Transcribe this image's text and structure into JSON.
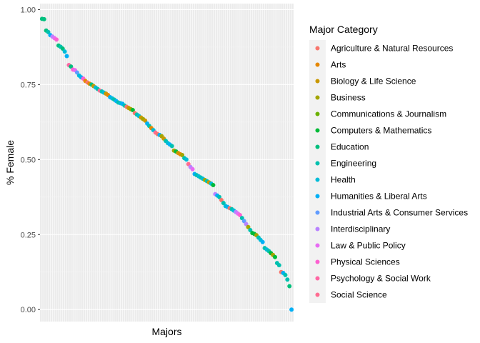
{
  "chart_data": {
    "type": "scatter",
    "xlabel": "Majors",
    "ylabel": "% Female",
    "ylim": [
      -0.04,
      1.02
    ],
    "yticks": [
      "0.00",
      "0.25",
      "0.50",
      "0.75",
      "1.00"
    ],
    "ytick_values": [
      0,
      0.25,
      0.5,
      0.75,
      1.0
    ],
    "grid": true,
    "x_tick_labels_shown": false,
    "legend_placement": "right",
    "legend": {
      "title": "Major Category",
      "categories": [
        {
          "name": "Agriculture & Natural Resources",
          "color": "#F8766D"
        },
        {
          "name": "Arts",
          "color": "#E58700"
        },
        {
          "name": "Biology & Life Science",
          "color": "#C99800"
        },
        {
          "name": "Business",
          "color": "#A3A500"
        },
        {
          "name": "Communications & Journalism",
          "color": "#6BB100"
        },
        {
          "name": "Computers & Mathematics",
          "color": "#00BA38"
        },
        {
          "name": "Education",
          "color": "#00BF7D"
        },
        {
          "name": "Engineering",
          "color": "#00C0AF"
        },
        {
          "name": "Health",
          "color": "#00BCD8"
        },
        {
          "name": "Humanities & Liberal Arts",
          "color": "#00B0F6"
        },
        {
          "name": "Industrial Arts & Consumer Services",
          "color": "#619CFF"
        },
        {
          "name": "Interdisciplinary",
          "color": "#B983FF"
        },
        {
          "name": "Law & Public Policy",
          "color": "#E76BF3"
        },
        {
          "name": "Physical Sciences",
          "color": "#FD61D1"
        },
        {
          "name": "Psychology & Social Work",
          "color": "#FF67A4"
        },
        {
          "name": "Social Science",
          "color": "#FF6C91"
        }
      ]
    },
    "points": [
      {
        "rank": 1,
        "y": 0.969,
        "category": "Education"
      },
      {
        "rank": 2,
        "y": 0.968,
        "category": "Education"
      },
      {
        "rank": 3,
        "y": 0.93,
        "category": "Education"
      },
      {
        "rank": 4,
        "y": 0.925,
        "category": "Engineering"
      },
      {
        "rank": 5,
        "y": 0.915,
        "category": "Humanities & Liberal Arts"
      },
      {
        "rank": 6,
        "y": 0.91,
        "category": "Interdisciplinary"
      },
      {
        "rank": 7,
        "y": 0.905,
        "category": "Law & Public Policy"
      },
      {
        "rank": 8,
        "y": 0.9,
        "category": "Physical Sciences"
      },
      {
        "rank": 9,
        "y": 0.88,
        "category": "Education"
      },
      {
        "rank": 10,
        "y": 0.876,
        "category": "Engineering"
      },
      {
        "rank": 11,
        "y": 0.87,
        "category": "Education"
      },
      {
        "rank": 12,
        "y": 0.86,
        "category": "Health"
      },
      {
        "rank": 13,
        "y": 0.845,
        "category": "Humanities & Liberal Arts"
      },
      {
        "rank": 14,
        "y": 0.815,
        "category": "Psychology & Social Work"
      },
      {
        "rank": 15,
        "y": 0.81,
        "category": "Education"
      },
      {
        "rank": 16,
        "y": 0.8,
        "category": "Physical Sciences"
      },
      {
        "rank": 17,
        "y": 0.798,
        "category": "Law & Public Policy"
      },
      {
        "rank": 18,
        "y": 0.79,
        "category": "Industrial Arts & Consumer Services"
      },
      {
        "rank": 19,
        "y": 0.78,
        "category": "Health"
      },
      {
        "rank": 20,
        "y": 0.774,
        "category": "Humanities & Liberal Arts"
      },
      {
        "rank": 21,
        "y": 0.77,
        "category": "Physical Sciences"
      },
      {
        "rank": 22,
        "y": 0.762,
        "category": "Arts"
      },
      {
        "rank": 23,
        "y": 0.757,
        "category": "Agriculture & Natural Resources"
      },
      {
        "rank": 24,
        "y": 0.753,
        "category": "Arts"
      },
      {
        "rank": 25,
        "y": 0.75,
        "category": "Education"
      },
      {
        "rank": 26,
        "y": 0.745,
        "category": "Biology & Life Science"
      },
      {
        "rank": 27,
        "y": 0.74,
        "category": "Health"
      },
      {
        "rank": 28,
        "y": 0.735,
        "category": "Engineering"
      },
      {
        "rank": 29,
        "y": 0.73,
        "category": "Social Science"
      },
      {
        "rank": 30,
        "y": 0.727,
        "category": "Engineering"
      },
      {
        "rank": 31,
        "y": 0.723,
        "category": "Health"
      },
      {
        "rank": 32,
        "y": 0.72,
        "category": "Biology & Life Science"
      },
      {
        "rank": 33,
        "y": 0.715,
        "category": "Arts"
      },
      {
        "rank": 34,
        "y": 0.708,
        "category": "Humanities & Liberal Arts"
      },
      {
        "rank": 35,
        "y": 0.704,
        "category": "Health"
      },
      {
        "rank": 36,
        "y": 0.7,
        "category": "Engineering"
      },
      {
        "rank": 37,
        "y": 0.695,
        "category": "Humanities & Liberal Arts"
      },
      {
        "rank": 38,
        "y": 0.69,
        "category": "Engineering"
      },
      {
        "rank": 39,
        "y": 0.688,
        "category": "Health"
      },
      {
        "rank": 40,
        "y": 0.686,
        "category": "Humanities & Liberal Arts"
      },
      {
        "rank": 41,
        "y": 0.68,
        "category": "Engineering"
      },
      {
        "rank": 42,
        "y": 0.676,
        "category": "Agriculture & Natural Resources"
      },
      {
        "rank": 43,
        "y": 0.672,
        "category": "Biology & Life Science"
      },
      {
        "rank": 44,
        "y": 0.668,
        "category": "Business"
      },
      {
        "rank": 45,
        "y": 0.665,
        "category": "Computers & Mathematics"
      },
      {
        "rank": 46,
        "y": 0.655,
        "category": "Agriculture & Natural Resources"
      },
      {
        "rank": 47,
        "y": 0.65,
        "category": "Engineering"
      },
      {
        "rank": 48,
        "y": 0.645,
        "category": "Health"
      },
      {
        "rank": 49,
        "y": 0.64,
        "category": "Biology & Life Science"
      },
      {
        "rank": 50,
        "y": 0.635,
        "category": "Business"
      },
      {
        "rank": 51,
        "y": 0.63,
        "category": "Biology & Life Science"
      },
      {
        "rank": 52,
        "y": 0.62,
        "category": "Humanities & Liberal Arts"
      },
      {
        "rank": 53,
        "y": 0.612,
        "category": "Engineering"
      },
      {
        "rank": 54,
        "y": 0.605,
        "category": "Arts"
      },
      {
        "rank": 55,
        "y": 0.598,
        "category": "Health"
      },
      {
        "rank": 56,
        "y": 0.59,
        "category": "Social Science"
      },
      {
        "rank": 57,
        "y": 0.585,
        "category": "Agriculture & Natural Resources"
      },
      {
        "rank": 58,
        "y": 0.582,
        "category": "Humanities & Liberal Arts"
      },
      {
        "rank": 59,
        "y": 0.578,
        "category": "Business"
      },
      {
        "rank": 60,
        "y": 0.57,
        "category": "Biology & Life Science"
      },
      {
        "rank": 61,
        "y": 0.562,
        "category": "Engineering"
      },
      {
        "rank": 62,
        "y": 0.555,
        "category": "Health"
      },
      {
        "rank": 63,
        "y": 0.55,
        "category": "Humanities & Liberal Arts"
      },
      {
        "rank": 64,
        "y": 0.545,
        "category": "Engineering"
      },
      {
        "rank": 65,
        "y": 0.53,
        "category": "Business"
      },
      {
        "rank": 66,
        "y": 0.527,
        "category": "Computers & Mathematics"
      },
      {
        "rank": 67,
        "y": 0.522,
        "category": "Biology & Life Science"
      },
      {
        "rank": 68,
        "y": 0.518,
        "category": "Arts"
      },
      {
        "rank": 69,
        "y": 0.515,
        "category": "Business"
      },
      {
        "rank": 70,
        "y": 0.505,
        "category": "Engineering"
      },
      {
        "rank": 71,
        "y": 0.5,
        "category": "Health"
      },
      {
        "rank": 72,
        "y": 0.485,
        "category": "Social Science"
      },
      {
        "rank": 73,
        "y": 0.475,
        "category": "Interdisciplinary"
      },
      {
        "rank": 74,
        "y": 0.468,
        "category": "Law & Public Policy"
      },
      {
        "rank": 75,
        "y": 0.452,
        "category": "Humanities & Liberal Arts"
      },
      {
        "rank": 76,
        "y": 0.448,
        "category": "Engineering"
      },
      {
        "rank": 77,
        "y": 0.444,
        "category": "Health"
      },
      {
        "rank": 78,
        "y": 0.44,
        "category": "Engineering"
      },
      {
        "rank": 79,
        "y": 0.436,
        "category": "Health"
      },
      {
        "rank": 80,
        "y": 0.432,
        "category": "Business"
      },
      {
        "rank": 81,
        "y": 0.428,
        "category": "Engineering"
      },
      {
        "rank": 82,
        "y": 0.424,
        "category": "Biology & Life Science"
      },
      {
        "rank": 83,
        "y": 0.42,
        "category": "Health"
      },
      {
        "rank": 84,
        "y": 0.415,
        "category": "Computers & Mathematics"
      },
      {
        "rank": 85,
        "y": 0.385,
        "category": "Interdisciplinary"
      },
      {
        "rank": 86,
        "y": 0.38,
        "category": "Humanities & Liberal Arts"
      },
      {
        "rank": 87,
        "y": 0.375,
        "category": "Engineering"
      },
      {
        "rank": 88,
        "y": 0.365,
        "category": "Agriculture & Natural Resources"
      },
      {
        "rank": 89,
        "y": 0.355,
        "category": "Engineering"
      },
      {
        "rank": 90,
        "y": 0.345,
        "category": "Health"
      },
      {
        "rank": 91,
        "y": 0.342,
        "category": "Humanities & Liberal Arts"
      },
      {
        "rank": 92,
        "y": 0.338,
        "category": "Agriculture & Natural Resources"
      },
      {
        "rank": 93,
        "y": 0.335,
        "category": "Engineering"
      },
      {
        "rank": 94,
        "y": 0.33,
        "category": "Health"
      },
      {
        "rank": 95,
        "y": 0.325,
        "category": "Interdisciplinary"
      },
      {
        "rank": 96,
        "y": 0.32,
        "category": "Law & Public Policy"
      },
      {
        "rank": 97,
        "y": 0.315,
        "category": "Physical Sciences"
      },
      {
        "rank": 98,
        "y": 0.305,
        "category": "Engineering"
      },
      {
        "rank": 99,
        "y": 0.295,
        "category": "Industrial Arts & Consumer Services"
      },
      {
        "rank": 100,
        "y": 0.285,
        "category": "Interdisciplinary"
      },
      {
        "rank": 101,
        "y": 0.275,
        "category": "Business"
      },
      {
        "rank": 102,
        "y": 0.265,
        "category": "Engineering"
      },
      {
        "rank": 103,
        "y": 0.255,
        "category": "Computers & Mathematics"
      },
      {
        "rank": 104,
        "y": 0.252,
        "category": "Computers & Mathematics"
      },
      {
        "rank": 105,
        "y": 0.248,
        "category": "Business"
      },
      {
        "rank": 106,
        "y": 0.24,
        "category": "Engineering"
      },
      {
        "rank": 107,
        "y": 0.232,
        "category": "Health"
      },
      {
        "rank": 108,
        "y": 0.225,
        "category": "Humanities & Liberal Arts"
      },
      {
        "rank": 109,
        "y": 0.205,
        "category": "Engineering"
      },
      {
        "rank": 110,
        "y": 0.2,
        "category": "Health"
      },
      {
        "rank": 111,
        "y": 0.195,
        "category": "Engineering"
      },
      {
        "rank": 112,
        "y": 0.188,
        "category": "Computers & Mathematics"
      },
      {
        "rank": 113,
        "y": 0.182,
        "category": "Business"
      },
      {
        "rank": 114,
        "y": 0.175,
        "category": "Computers & Mathematics"
      },
      {
        "rank": 115,
        "y": 0.155,
        "category": "Engineering"
      },
      {
        "rank": 116,
        "y": 0.148,
        "category": "Engineering"
      },
      {
        "rank": 117,
        "y": 0.125,
        "category": "Agriculture & Natural Resources"
      },
      {
        "rank": 118,
        "y": 0.122,
        "category": "Humanities & Liberal Arts"
      },
      {
        "rank": 119,
        "y": 0.115,
        "category": "Engineering"
      },
      {
        "rank": 120,
        "y": 0.1,
        "category": "Engineering"
      },
      {
        "rank": 121,
        "y": 0.078,
        "category": "Education"
      },
      {
        "rank": 122,
        "y": 0.0,
        "category": "Humanities & Liberal Arts"
      }
    ]
  }
}
